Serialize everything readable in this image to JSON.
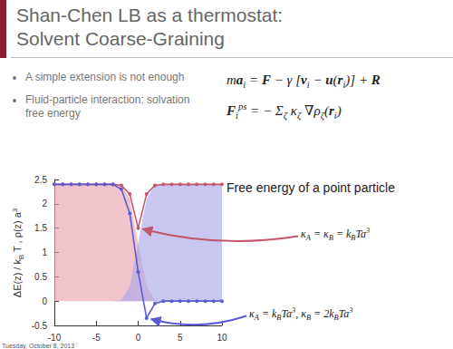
{
  "slide": {
    "title": [
      "Shan-Chen LB as a thermostat:",
      "Solvent Coarse-Graining"
    ],
    "bullets": [
      "A simple extension is not enough",
      "Fluid-particle interaction: solvation free energy"
    ],
    "equations": [
      [
        "m",
        {
          "bold": "a"
        },
        {
          "sub": "i"
        },
        " = ",
        {
          "bold": "F"
        },
        " − γ [",
        {
          "bold": "v"
        },
        {
          "sub": "i"
        },
        " − ",
        {
          "bold": "u"
        },
        "(",
        {
          "bold": "r"
        },
        {
          "sub": "i"
        },
        ")] + ",
        {
          "bold": "R"
        }
      ],
      [
        {
          "bold": "F"
        },
        {
          "sub": "i"
        },
        {
          "sup": "ps"
        },
        " = − Σ",
        {
          "sub": "ζ"
        },
        " κ",
        {
          "sub": "ζ"
        },
        " ∇ρ",
        {
          "sub": "ζ"
        },
        "(",
        {
          "bold": "r"
        },
        {
          "sub": "i"
        },
        ")"
      ]
    ],
    "caption": "Free energy of a point particle",
    "annotations": [
      [
        "κ",
        {
          "sub": "A"
        },
        " = κ",
        {
          "sub": "B"
        },
        " = k",
        {
          "sub": "B"
        },
        "Ta",
        {
          "sup": "3"
        }
      ],
      [
        "κ",
        {
          "sub": "A"
        },
        " = k",
        {
          "sub": "B"
        },
        "Ta",
        {
          "sup": "3"
        },
        ", κ",
        {
          "sub": "B"
        },
        " = 2k",
        {
          "sub": "B"
        },
        "Ta",
        {
          "sup": "3"
        }
      ]
    ],
    "footer": "Tuesday, October 8, 2013"
  },
  "chart_data": {
    "type": "line",
    "ylabel": [
      "ΔE(z) / k",
      {
        "sub": "B"
      },
      " T , ρ(z) a",
      {
        "sup": "3"
      }
    ],
    "x": [
      -10,
      -9,
      -8,
      -7,
      -6,
      -5,
      -4,
      -3,
      -2,
      -1,
      0,
      1,
      2,
      3,
      4,
      5,
      6,
      7,
      8,
      9,
      10
    ],
    "xlim": [
      -10,
      10
    ],
    "xticks": [
      -10,
      -5,
      0,
      5,
      10
    ],
    "ylim": [
      -0.5,
      2.5
    ],
    "yticks": [
      -0.5,
      0,
      0.5,
      1,
      1.5,
      2,
      2.5
    ],
    "grid": false,
    "series": [
      {
        "type": "area",
        "marker": "none",
        "color": "#e9a3ae",
        "values": [
          2.4,
          2.4,
          2.4,
          2.4,
          2.4,
          2.4,
          2.4,
          2.4,
          2.38,
          2.1,
          1.2,
          0.3,
          0.02,
          0,
          0,
          0,
          0,
          0,
          0,
          0,
          0
        ]
      },
      {
        "type": "area",
        "marker": "none",
        "color": "#a9a9e6",
        "values": [
          0,
          0,
          0,
          0,
          0,
          0,
          0,
          0,
          0.02,
          0.3,
          1.2,
          2.1,
          2.38,
          2.4,
          2.4,
          2.4,
          2.4,
          2.4,
          2.4,
          2.4,
          2.4
        ]
      },
      {
        "type": "line",
        "marker": "circle",
        "color": "#c4566c",
        "values": [
          2.4,
          2.4,
          2.4,
          2.4,
          2.4,
          2.4,
          2.4,
          2.4,
          2.38,
          2.2,
          1.5,
          2.2,
          2.38,
          2.4,
          2.4,
          2.4,
          2.4,
          2.4,
          2.4,
          2.4,
          2.4
        ]
      },
      {
        "type": "line",
        "marker": "circle",
        "color": "#5b5bd6",
        "values": [
          2.4,
          2.4,
          2.4,
          2.4,
          2.4,
          2.4,
          2.4,
          2.4,
          2.3,
          1.8,
          0.6,
          -0.35,
          -0.05,
          0,
          0,
          0,
          0,
          0,
          0,
          0,
          0
        ]
      }
    ]
  }
}
